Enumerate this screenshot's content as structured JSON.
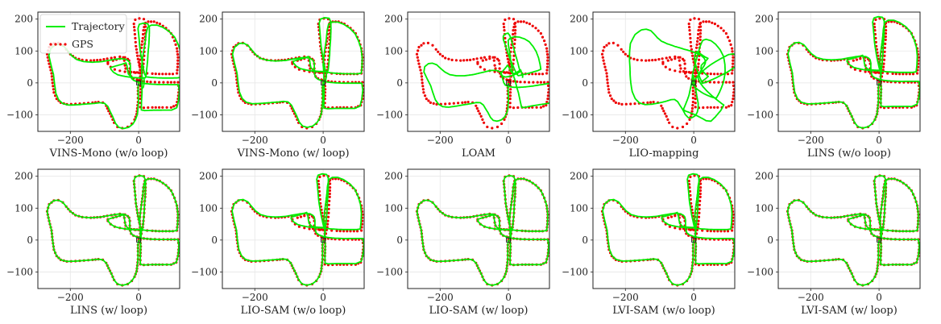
{
  "legend": {
    "trajectory_label": "Trajectory",
    "gps_label": "GPS"
  },
  "colors": {
    "trajectory": "#00ee00",
    "gps": "#ee0000",
    "start_marker": "#222222"
  },
  "shared_axes": {
    "xlim": [
      -295,
      120
    ],
    "ylim": [
      -152,
      222
    ],
    "xticks": [
      -200,
      0
    ],
    "yticks": [
      -100,
      0,
      100,
      200
    ],
    "grid": true,
    "legend_position": "top-left (first panel only)"
  },
  "chart_data": [
    {
      "type": "line",
      "title": "",
      "xlabel": "VINS-Mono (w/o loop)",
      "ylabel": "",
      "distortion": "drift",
      "series": [
        {
          "name": "Trajectory"
        },
        {
          "name": "GPS"
        }
      ]
    },
    {
      "type": "line",
      "title": "",
      "xlabel": "VINS-Mono (w/ loop)",
      "ylabel": "",
      "distortion": "close",
      "series": [
        {
          "name": "Trajectory"
        },
        {
          "name": "GPS"
        }
      ]
    },
    {
      "type": "line",
      "title": "",
      "xlabel": "LOAM",
      "ylabel": "",
      "distortion": "chaos",
      "series": [
        {
          "name": "Trajectory"
        },
        {
          "name": "GPS"
        }
      ]
    },
    {
      "type": "line",
      "title": "",
      "xlabel": "LIO-mapping",
      "ylabel": "",
      "distortion": "chaos2",
      "series": [
        {
          "name": "Trajectory"
        },
        {
          "name": "GPS"
        }
      ]
    },
    {
      "type": "line",
      "title": "",
      "xlabel": "LINS (w/o loop)",
      "ylabel": "",
      "distortion": "slight",
      "series": [
        {
          "name": "Trajectory"
        },
        {
          "name": "GPS"
        }
      ]
    },
    {
      "type": "line",
      "title": "",
      "xlabel": "LINS (w/ loop)",
      "ylabel": "",
      "distortion": "exact",
      "series": [
        {
          "name": "Trajectory"
        },
        {
          "name": "GPS"
        }
      ]
    },
    {
      "type": "line",
      "title": "",
      "xlabel": "LIO-SAM (w/o loop)",
      "ylabel": "",
      "distortion": "slight",
      "series": [
        {
          "name": "Trajectory"
        },
        {
          "name": "GPS"
        }
      ]
    },
    {
      "type": "line",
      "title": "",
      "xlabel": "LIO-SAM (w/ loop)",
      "ylabel": "",
      "distortion": "exact",
      "series": [
        {
          "name": "Trajectory"
        },
        {
          "name": "GPS"
        }
      ]
    },
    {
      "type": "line",
      "title": "",
      "xlabel": "LVI-SAM (w/o loop)",
      "ylabel": "",
      "distortion": "slight",
      "series": [
        {
          "name": "Trajectory"
        },
        {
          "name": "GPS"
        }
      ]
    },
    {
      "type": "line",
      "title": "",
      "xlabel": "LVI-SAM (w/ loop)",
      "ylabel": "",
      "distortion": "exact",
      "series": [
        {
          "name": "Trajectory"
        },
        {
          "name": "GPS"
        }
      ]
    }
  ],
  "gps_path": [
    [
      0,
      0
    ],
    [
      -2,
      -15
    ],
    [
      -2,
      -35
    ],
    [
      -2,
      -60
    ],
    [
      -4,
      -80
    ],
    [
      -6,
      -98
    ],
    [
      -12,
      -115
    ],
    [
      -20,
      -128
    ],
    [
      -32,
      -138
    ],
    [
      -48,
      -142
    ],
    [
      -62,
      -138
    ],
    [
      -72,
      -125
    ],
    [
      -80,
      -105
    ],
    [
      -88,
      -88
    ],
    [
      -95,
      -72
    ],
    [
      -105,
      -62
    ],
    [
      -118,
      -60
    ],
    [
      -135,
      -62
    ],
    [
      -160,
      -64
    ],
    [
      -185,
      -66
    ],
    [
      -210,
      -67
    ],
    [
      -228,
      -62
    ],
    [
      -240,
      -50
    ],
    [
      -248,
      -30
    ],
    [
      -252,
      0
    ],
    [
      -255,
      30
    ],
    [
      -262,
      60
    ],
    [
      -268,
      90
    ],
    [
      -262,
      112
    ],
    [
      -248,
      124
    ],
    [
      -235,
      125
    ],
    [
      -222,
      118
    ],
    [
      -212,
      105
    ],
    [
      -200,
      90
    ],
    [
      -185,
      78
    ],
    [
      -165,
      72
    ],
    [
      -140,
      70
    ],
    [
      -112,
      72
    ],
    [
      -92,
      76
    ],
    [
      -80,
      78
    ],
    [
      -70,
      80
    ],
    [
      -55,
      82
    ],
    [
      -40,
      80
    ],
    [
      -32,
      75
    ],
    [
      -28,
      70
    ],
    [
      -26,
      60
    ],
    [
      -26,
      45
    ],
    [
      -25,
      30
    ],
    [
      -22,
      20
    ],
    [
      -15,
      14
    ],
    [
      -5,
      10
    ],
    [
      0,
      8
    ],
    [
      15,
      5
    ],
    [
      35,
      3
    ],
    [
      60,
      2
    ],
    [
      85,
      2
    ],
    [
      115,
      2
    ],
    [
      118,
      -20
    ],
    [
      115,
      -50
    ],
    [
      110,
      -70
    ],
    [
      95,
      -77
    ],
    [
      70,
      -77
    ],
    [
      40,
      -77
    ],
    [
      15,
      -78
    ],
    [
      5,
      -76
    ],
    [
      5,
      -50
    ],
    [
      6,
      -20
    ],
    [
      5,
      0
    ],
    [
      5,
      30
    ],
    [
      3,
      60
    ],
    [
      5,
      85
    ],
    [
      8,
      110
    ],
    [
      12,
      140
    ],
    [
      14,
      165
    ],
    [
      18,
      185
    ],
    [
      28,
      192
    ],
    [
      45,
      192
    ],
    [
      62,
      185
    ],
    [
      80,
      172
    ],
    [
      95,
      155
    ],
    [
      105,
      132
    ],
    [
      112,
      108
    ],
    [
      115,
      80
    ],
    [
      114,
      50
    ],
    [
      112,
      30
    ],
    [
      100,
      28
    ],
    [
      80,
      28
    ],
    [
      60,
      28
    ],
    [
      40,
      29
    ],
    [
      25,
      30
    ],
    [
      10,
      32
    ],
    [
      5,
      40
    ],
    [
      2,
      55
    ],
    [
      -2,
      75
    ],
    [
      -5,
      95
    ],
    [
      -8,
      115
    ],
    [
      -10,
      140
    ],
    [
      -12,
      165
    ],
    [
      -14,
      185
    ],
    [
      -10,
      198
    ],
    [
      2,
      202
    ],
    [
      15,
      200
    ],
    [
      20,
      188
    ],
    [
      20,
      165
    ],
    [
      19,
      135
    ],
    [
      17,
      110
    ],
    [
      16,
      85
    ],
    [
      14,
      60
    ],
    [
      12,
      40
    ],
    [
      10,
      32
    ],
    [
      -10,
      32
    ],
    [
      -25,
      33
    ],
    [
      -40,
      35
    ],
    [
      -55,
      38
    ],
    [
      -70,
      42
    ],
    [
      -82,
      50
    ],
    [
      -90,
      60
    ],
    [
      -90,
      65
    ],
    [
      -75,
      70
    ],
    [
      -55,
      76
    ],
    [
      -45,
      80
    ],
    [
      -42,
      70
    ],
    [
      -40,
      55
    ],
    [
      -38,
      45
    ],
    [
      -30,
      36
    ],
    [
      -22,
      34
    ],
    [
      -5,
      33
    ],
    [
      8,
      33
    ],
    [
      8,
      20
    ],
    [
      6,
      5
    ],
    [
      2,
      0
    ]
  ]
}
